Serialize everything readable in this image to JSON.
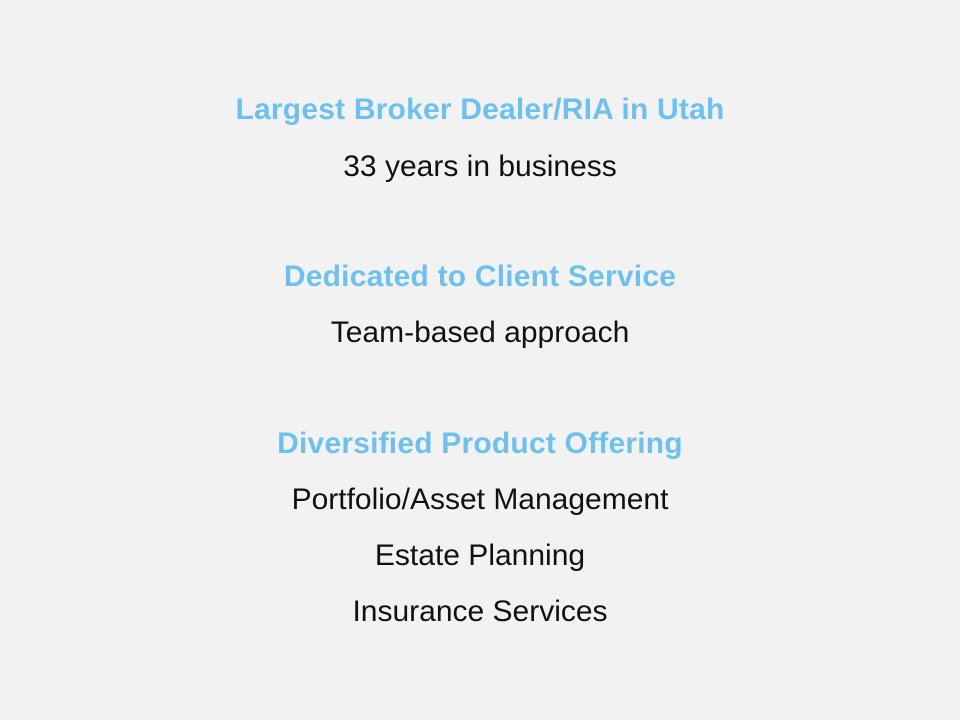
{
  "colors": {
    "background": "#f2f2f2",
    "heading": "#6ec1ec",
    "body": "#111111"
  },
  "sections": [
    {
      "heading": "Largest Broker Dealer/RIA in Utah",
      "lines": [
        "33 years in business"
      ]
    },
    {
      "heading": "Dedicated to Client Service",
      "lines": [
        "Team-based approach"
      ]
    },
    {
      "heading": "Diversified Product Offering",
      "lines": [
        "Portfolio/Asset Management",
        "Estate Planning",
        "Insurance Services"
      ]
    }
  ]
}
